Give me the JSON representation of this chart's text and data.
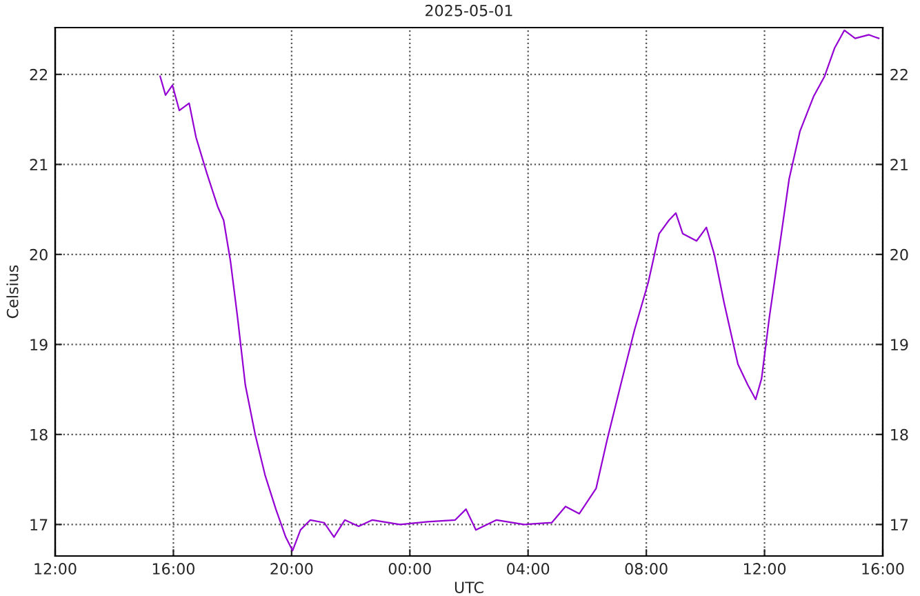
{
  "chart_data": {
    "type": "line",
    "title": "2025-05-01",
    "xlabel": "UTC",
    "ylabel": "Celsius",
    "x": [
      "2025-04-30T15:33",
      "2025-04-30T15:44",
      "2025-04-30T15:58",
      "2025-04-30T16:12",
      "2025-04-30T16:32",
      "2025-04-30T16:46",
      "2025-04-30T17:08",
      "2025-04-30T17:30",
      "2025-04-30T17:42",
      "2025-04-30T17:56",
      "2025-04-30T18:10",
      "2025-04-30T18:26",
      "2025-04-30T18:46",
      "2025-04-30T19:06",
      "2025-04-30T19:28",
      "2025-04-30T19:48",
      "2025-04-30T20:02",
      "2025-04-30T20:18",
      "2025-04-30T20:38",
      "2025-04-30T21:06",
      "2025-04-30T21:26",
      "2025-04-30T21:48",
      "2025-04-30T22:16",
      "2025-04-30T22:44",
      "2025-04-30T23:40",
      "2025-05-01T00:36",
      "2025-05-01T01:32",
      "2025-05-01T01:54",
      "2025-05-01T02:14",
      "2025-05-01T02:56",
      "2025-05-01T03:52",
      "2025-05-01T04:48",
      "2025-05-01T05:16",
      "2025-05-01T05:44",
      "2025-05-01T06:18",
      "2025-05-01T06:40",
      "2025-05-01T07:08",
      "2025-05-01T07:36",
      "2025-05-01T08:04",
      "2025-05-01T08:26",
      "2025-05-01T08:46",
      "2025-05-01T09:00",
      "2025-05-01T09:14",
      "2025-05-01T09:42",
      "2025-05-01T10:02",
      "2025-05-01T10:18",
      "2025-05-01T10:38",
      "2025-05-01T11:06",
      "2025-05-01T11:26",
      "2025-05-01T11:42",
      "2025-05-01T11:54",
      "2025-05-01T12:10",
      "2025-05-01T12:30",
      "2025-05-01T12:50",
      "2025-05-01T13:12",
      "2025-05-01T13:40",
      "2025-05-01T14:02",
      "2025-05-01T14:22",
      "2025-05-01T14:42",
      "2025-05-01T15:04",
      "2025-05-01T15:32",
      "2025-05-01T15:52"
    ],
    "series": [
      {
        "color": "#9400d3",
        "values": [
          21.98,
          21.77,
          21.88,
          21.6,
          21.68,
          21.3,
          20.9,
          20.53,
          20.38,
          19.92,
          19.31,
          18.55,
          18.0,
          17.55,
          17.17,
          16.86,
          16.71,
          16.94,
          17.05,
          17.02,
          16.86,
          17.05,
          16.98,
          17.05,
          17.0,
          17.03,
          17.05,
          17.17,
          16.94,
          17.05,
          17.0,
          17.02,
          17.2,
          17.12,
          17.4,
          17.93,
          18.55,
          19.16,
          19.69,
          20.23,
          20.38,
          20.46,
          20.23,
          20.15,
          20.3,
          20.0,
          19.46,
          18.78,
          18.55,
          18.39,
          18.62,
          19.31,
          20.07,
          20.84,
          21.37,
          21.76,
          21.98,
          22.29,
          22.49,
          22.4,
          22.44,
          22.4
        ]
      }
    ],
    "xlim": [
      "2025-04-30T12:00",
      "2025-05-01T16:00"
    ],
    "xticks": [
      {
        "value": "2025-04-30T12:00",
        "label": "12:00"
      },
      {
        "value": "2025-04-30T16:00",
        "label": "16:00"
      },
      {
        "value": "2025-04-30T20:00",
        "label": "20:00"
      },
      {
        "value": "2025-05-01T00:00",
        "label": "00:00"
      },
      {
        "value": "2025-05-01T04:00",
        "label": "04:00"
      },
      {
        "value": "2025-05-01T08:00",
        "label": "08:00"
      },
      {
        "value": "2025-05-01T12:00",
        "label": "12:00"
      },
      {
        "value": "2025-05-01T16:00",
        "label": "16:00"
      }
    ],
    "ylim": [
      16.65,
      22.52
    ],
    "yticks": [
      17,
      18,
      19,
      20,
      21,
      22
    ],
    "y2lim": [
      16.65,
      22.52
    ],
    "y2ticks": [
      17,
      18,
      19,
      20,
      21,
      22
    ],
    "grid": true,
    "line_style": "solid"
  }
}
